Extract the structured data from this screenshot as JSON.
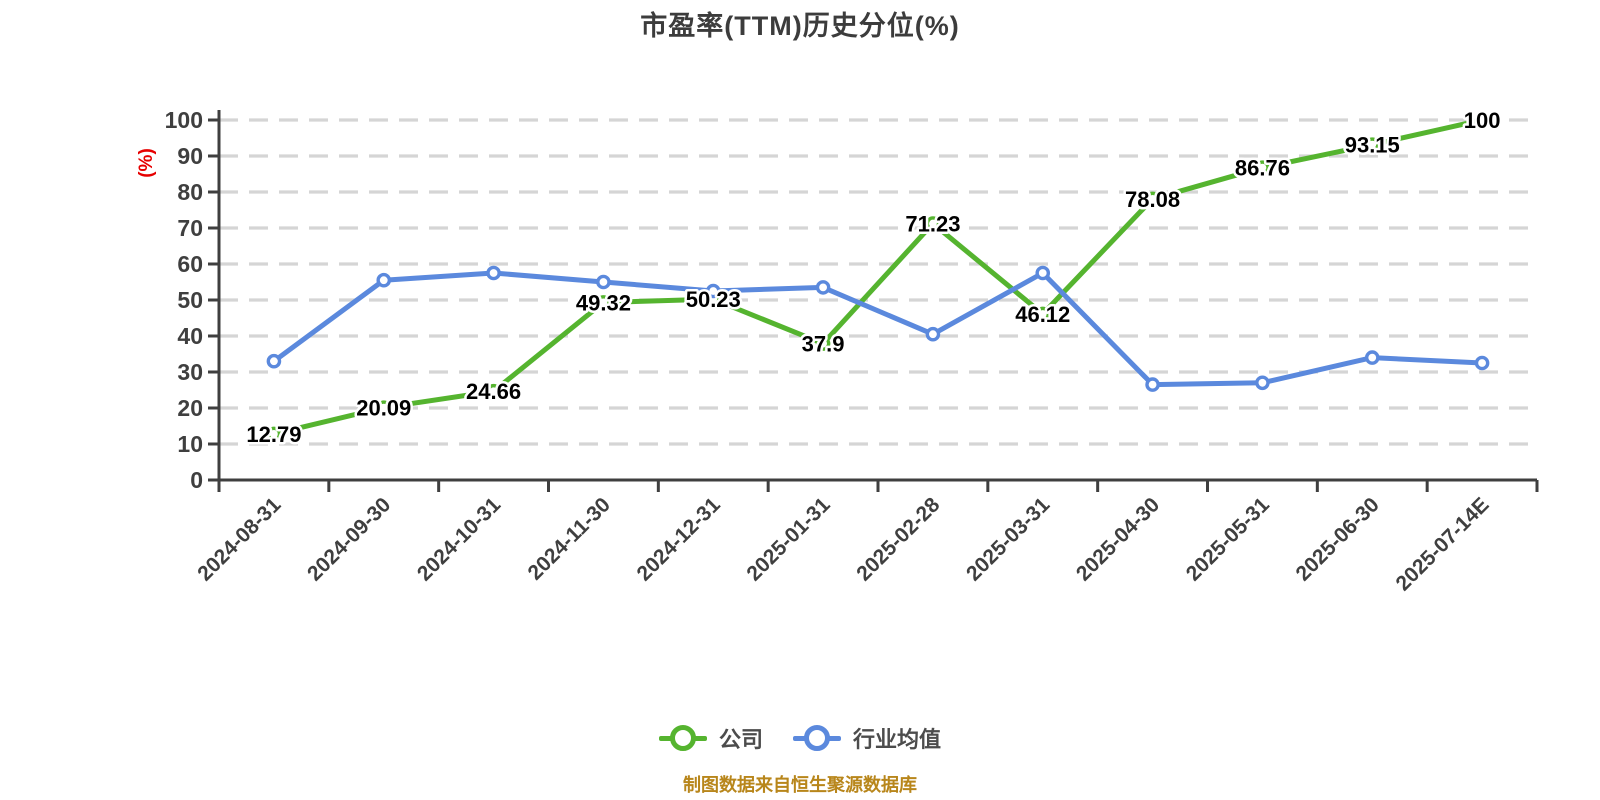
{
  "source_note": "制图数据来自恒生聚源数据库",
  "colors": {
    "company_line": "#55b42f",
    "industry_line": "#5b89dd",
    "grid": "#d5d5d5",
    "axis": "#3f3f3f",
    "title_text": "#3c3c3c",
    "y_unit_label": "#e60000",
    "source_note_text": "#b8861b",
    "value_label_text": "#000000",
    "marker_fill": "#ffffff"
  },
  "chart_data": {
    "type": "line",
    "title": "市盈率(TTM)历史分位(%)",
    "categories": [
      "2024-08-31",
      "2024-09-30",
      "2024-10-31",
      "2024-11-30",
      "2024-12-31",
      "2025-01-31",
      "2025-02-28",
      "2025-03-31",
      "2025-04-30",
      "2025-05-31",
      "2025-06-30",
      "2025-07-14E"
    ],
    "series": [
      {
        "name": "公司",
        "key": "company",
        "color": "#55b42f",
        "values": [
          12.79,
          20.09,
          24.66,
          49.32,
          50.23,
          37.9,
          71.23,
          46.12,
          78.08,
          86.76,
          93.15,
          100
        ],
        "value_labels": true
      },
      {
        "name": "行业均值",
        "key": "industry",
        "color": "#5b89dd",
        "values": [
          33,
          55.5,
          57.5,
          55,
          52.5,
          53.5,
          40.5,
          57.5,
          26.5,
          27,
          34,
          32.5
        ],
        "value_labels": false
      }
    ],
    "xlabel": "",
    "ylabel": "(%)",
    "ylim": [
      0,
      100
    ],
    "y_ticks": [
      0,
      10,
      20,
      30,
      40,
      50,
      60,
      70,
      80,
      90,
      100
    ],
    "grid": "horizontal-dashed",
    "legend_position": "bottom"
  }
}
